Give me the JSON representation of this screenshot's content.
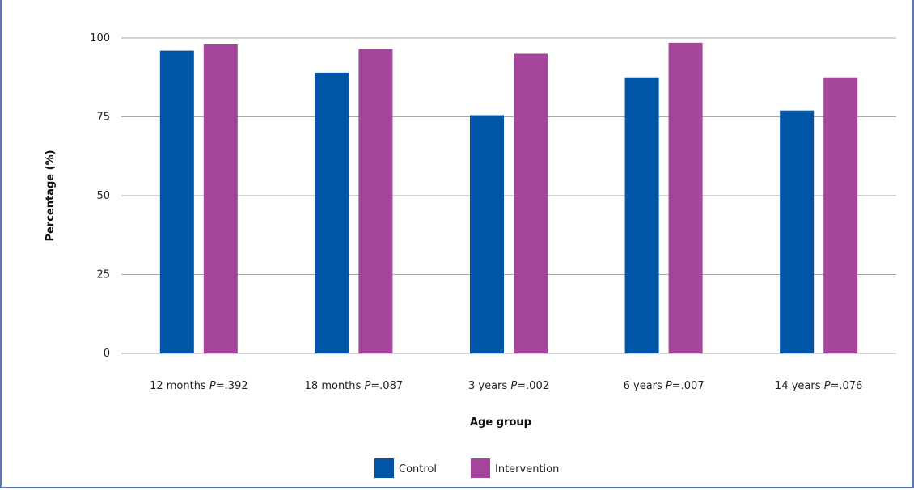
{
  "header": {
    "title": ""
  },
  "chart_data": {
    "type": "bar",
    "categories": [
      {
        "label": "12 months",
        "p_label": "P",
        "p_value": "=.392"
      },
      {
        "label": "18 months",
        "p_label": "P",
        "p_value": "=.087"
      },
      {
        "label": "3 years",
        "p_label": "P",
        "p_value": "=.002"
      },
      {
        "label": "6 years",
        "p_label": "P",
        "p_value": "=.007"
      },
      {
        "label": "14 years",
        "p_label": "P",
        "p_value": "=.076"
      }
    ],
    "series": [
      {
        "name": "Control",
        "color": "#0055a6",
        "values": [
          96,
          89,
          75.5,
          87.5,
          77
        ]
      },
      {
        "name": "Intervention",
        "color": "#a4449a",
        "values": [
          98,
          96.5,
          95,
          98.5,
          87.5
        ]
      }
    ],
    "xlabel": "Age group",
    "ylabel": "Percentage (%)",
    "ylim": [
      0,
      100
    ],
    "yticks": [
      0,
      25,
      50,
      75,
      100
    ],
    "grid": true,
    "legend_position": "bottom"
  }
}
